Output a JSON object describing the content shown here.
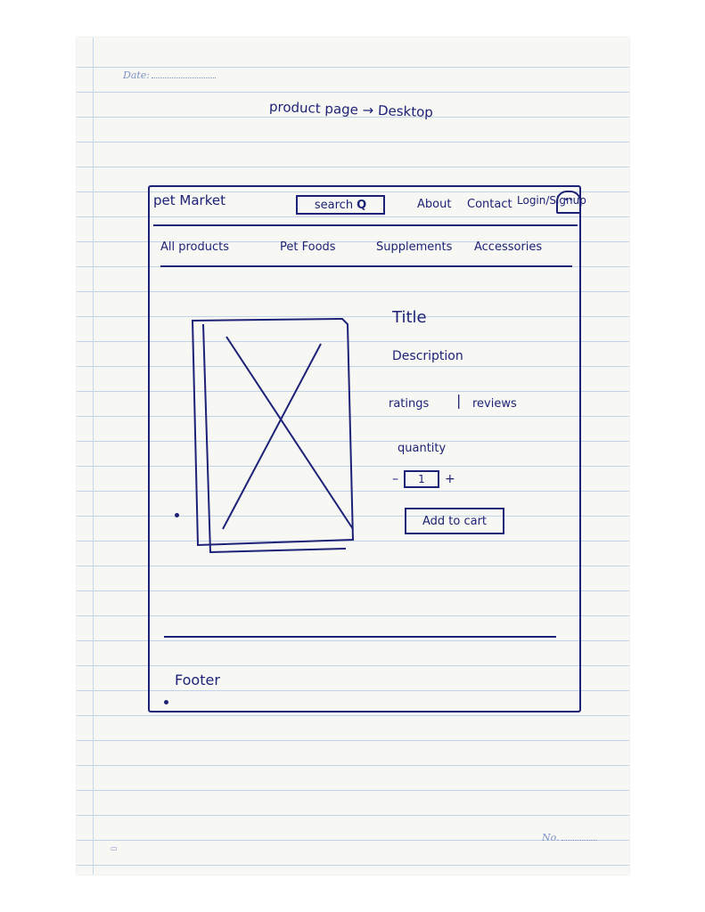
{
  "sheet": {
    "date_label": "Date:",
    "page_title": "product page → Desktop",
    "page_no_label": "No."
  },
  "header": {
    "brand": "pet Market",
    "search_label": "search",
    "search_icon_glyph": "Q",
    "nav": [
      "About",
      "Contact",
      "Login/Signup"
    ],
    "avatar_icon": "user-avatar-icon"
  },
  "categories": [
    "All products",
    "Pet Foods",
    "Supplements",
    "Accessories"
  ],
  "product": {
    "image_placeholder": "image-placeholder-icon",
    "title": "Title",
    "description": "Description",
    "ratings": "ratings",
    "reviews": "reviews",
    "quantity_label": "quantity",
    "minus": "–",
    "quantity_value": "1",
    "plus": "+",
    "add_to_cart": "Add to cart"
  },
  "footer": {
    "label": "Footer"
  },
  "colors": {
    "ink": "#1d2277",
    "paper": "#f7f7f4",
    "rule_line": "#c3d3e6"
  }
}
